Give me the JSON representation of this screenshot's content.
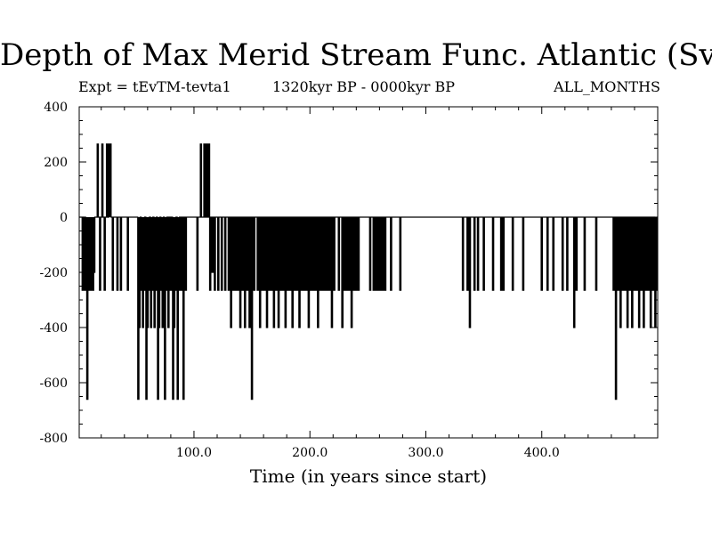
{
  "header": {
    "title": "Depth of Max Merid Stream Func. Atlantic (Sv)",
    "left": "Expt = tEvTM-tevta1",
    "center": "1320kyr BP - 0000kyr BP",
    "right": "ALL_MONTHS"
  },
  "chart_data": {
    "type": "line",
    "title": "Depth of Max Merid Stream Func. Atlantic (Sv)",
    "xlabel": "Time (in years since start)",
    "ylabel": "",
    "xlim": [
      1,
      500
    ],
    "ylim": [
      -800,
      400
    ],
    "xticks": [
      100,
      200,
      300,
      400
    ],
    "xtick_labels": [
      "100.0",
      "200.0",
      "300.0",
      "400.0"
    ],
    "yticks": [
      -800,
      -600,
      -400,
      -200,
      0,
      200,
      400
    ],
    "ytick_labels": [
      "-800",
      "-600",
      "-400",
      "-200",
      "0",
      "200",
      "400"
    ],
    "events": [
      [
        4,
        -265
      ],
      [
        6,
        -265
      ],
      [
        7,
        -100
      ],
      [
        8,
        -660
      ],
      [
        9,
        -265
      ],
      [
        10,
        -200
      ],
      [
        11,
        -265
      ],
      [
        12,
        -265
      ],
      [
        13,
        -265
      ],
      [
        14,
        -200
      ],
      [
        17,
        265
      ],
      [
        19,
        -265
      ],
      [
        21,
        265
      ],
      [
        23,
        -265
      ],
      [
        25,
        265
      ],
      [
        27,
        265
      ],
      [
        28,
        265
      ],
      [
        30,
        -265
      ],
      [
        34,
        -265
      ],
      [
        37,
        -265
      ],
      [
        43,
        -265
      ],
      [
        52,
        -660
      ],
      [
        53,
        -400
      ],
      [
        55,
        -265
      ],
      [
        56,
        -400
      ],
      [
        57,
        -265
      ],
      [
        59,
        -660
      ],
      [
        60,
        -400
      ],
      [
        61,
        -265
      ],
      [
        63,
        -400
      ],
      [
        64,
        -265
      ],
      [
        66,
        -400
      ],
      [
        67,
        -265
      ],
      [
        69,
        -660
      ],
      [
        70,
        -400
      ],
      [
        72,
        -265
      ],
      [
        73,
        -400
      ],
      [
        75,
        -660
      ],
      [
        76,
        -265
      ],
      [
        78,
        -400
      ],
      [
        80,
        -265
      ],
      [
        82,
        -660
      ],
      [
        83,
        -400
      ],
      [
        84,
        -265
      ],
      [
        86,
        -660
      ],
      [
        87,
        -265
      ],
      [
        89,
        -265
      ],
      [
        91,
        -660
      ],
      [
        93,
        -265
      ],
      [
        103,
        -265
      ],
      [
        106,
        265
      ],
      [
        109,
        265
      ],
      [
        111,
        265
      ],
      [
        113,
        265
      ],
      [
        114,
        -265
      ],
      [
        116,
        -200
      ],
      [
        118,
        -265
      ],
      [
        121,
        -265
      ],
      [
        124,
        -265
      ],
      [
        127,
        -265
      ],
      [
        130,
        -265
      ],
      [
        132,
        -400
      ],
      [
        134,
        -265
      ],
      [
        136,
        -265
      ],
      [
        138,
        -265
      ],
      [
        140,
        -400
      ],
      [
        142,
        -265
      ],
      [
        144,
        -400
      ],
      [
        146,
        -265
      ],
      [
        148,
        -400
      ],
      [
        150,
        -660
      ],
      [
        152,
        -265
      ],
      [
        155,
        -265
      ],
      [
        157,
        -400
      ],
      [
        159,
        -265
      ],
      [
        161,
        -265
      ],
      [
        163,
        -400
      ],
      [
        165,
        -265
      ],
      [
        167,
        -265
      ],
      [
        169,
        -400
      ],
      [
        171,
        -265
      ],
      [
        173,
        -400
      ],
      [
        175,
        -265
      ],
      [
        177,
        -265
      ],
      [
        179,
        -400
      ],
      [
        181,
        -265
      ],
      [
        183,
        -265
      ],
      [
        185,
        -400
      ],
      [
        187,
        -265
      ],
      [
        189,
        -265
      ],
      [
        191,
        -400
      ],
      [
        193,
        -265
      ],
      [
        195,
        -265
      ],
      [
        197,
        -265
      ],
      [
        199,
        -400
      ],
      [
        201,
        -265
      ],
      [
        203,
        -265
      ],
      [
        205,
        -265
      ],
      [
        207,
        -400
      ],
      [
        209,
        -265
      ],
      [
        211,
        -265
      ],
      [
        213,
        -265
      ],
      [
        215,
        -265
      ],
      [
        217,
        -265
      ],
      [
        219,
        -400
      ],
      [
        221,
        -265
      ],
      [
        225,
        -265
      ],
      [
        228,
        -400
      ],
      [
        230,
        -265
      ],
      [
        232,
        -265
      ],
      [
        234,
        -265
      ],
      [
        236,
        -400
      ],
      [
        238,
        -265
      ],
      [
        240,
        -265
      ],
      [
        242,
        -265
      ],
      [
        252,
        -265
      ],
      [
        255,
        -265
      ],
      [
        257,
        -265
      ],
      [
        259,
        -265
      ],
      [
        261,
        -265
      ],
      [
        263,
        -265
      ],
      [
        265,
        -265
      ],
      [
        270,
        -265
      ],
      [
        278,
        -265
      ],
      [
        332,
        -265
      ],
      [
        336,
        -265
      ],
      [
        338,
        -400
      ],
      [
        342,
        -265
      ],
      [
        345,
        -265
      ],
      [
        350,
        -265
      ],
      [
        358,
        -265
      ],
      [
        365,
        -265
      ],
      [
        367,
        -265
      ],
      [
        375,
        -265
      ],
      [
        384,
        -265
      ],
      [
        400,
        -265
      ],
      [
        405,
        -265
      ],
      [
        410,
        -265
      ],
      [
        418,
        -265
      ],
      [
        422,
        -265
      ],
      [
        428,
        -400
      ],
      [
        430,
        -265
      ],
      [
        437,
        -265
      ],
      [
        447,
        -265
      ],
      [
        462,
        -265
      ],
      [
        464,
        -660
      ],
      [
        466,
        -265
      ],
      [
        468,
        -400
      ],
      [
        470,
        -265
      ],
      [
        472,
        -265
      ],
      [
        474,
        -400
      ],
      [
        476,
        -265
      ],
      [
        478,
        -400
      ],
      [
        480,
        -265
      ],
      [
        482,
        -265
      ],
      [
        484,
        -400
      ],
      [
        486,
        -265
      ],
      [
        488,
        -400
      ],
      [
        490,
        -265
      ],
      [
        492,
        -265
      ],
      [
        494,
        -400
      ],
      [
        496,
        -265
      ],
      [
        498,
        -400
      ],
      [
        499,
        -265
      ]
    ]
  }
}
